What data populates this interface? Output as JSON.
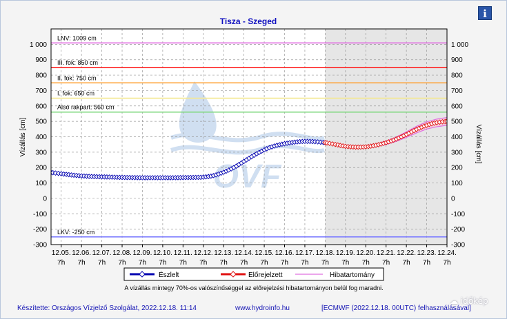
{
  "info_button": {
    "icon": "info-icon",
    "glyph": "i"
  },
  "brand": {
    "icon": "cloud-icon",
    "text": "időkép"
  },
  "chart_data": {
    "type": "line",
    "title": "Tisza - Szeged",
    "ylabel": "Vízállás [cm]",
    "ylabel_right": "Vízállás [cm]",
    "ylim": [
      -300,
      1100
    ],
    "yticks": [
      -300,
      -200,
      -100,
      0,
      100,
      200,
      300,
      400,
      500,
      600,
      700,
      800,
      900,
      1000
    ],
    "ytick_labels": [
      "-300",
      "-200",
      "-100",
      "0",
      "100",
      "200",
      "300",
      "400",
      "500",
      "600",
      "700",
      "800",
      "900",
      "1 000"
    ],
    "x_start": "12.04. 19h",
    "x_end": "12.24. 7h",
    "x_ticks": [
      {
        "day": "12.05.",
        "hour": "7h"
      },
      {
        "day": "12.06.",
        "hour": "7h"
      },
      {
        "day": "12.07.",
        "hour": "7h"
      },
      {
        "day": "12.08.",
        "hour": "7h"
      },
      {
        "day": "12.09.",
        "hour": "7h"
      },
      {
        "day": "12.10.",
        "hour": "7h"
      },
      {
        "day": "12.11.",
        "hour": "7h"
      },
      {
        "day": "12.12.",
        "hour": "7h"
      },
      {
        "day": "12.13.",
        "hour": "7h"
      },
      {
        "day": "12.14.",
        "hour": "7h"
      },
      {
        "day": "12.15.",
        "hour": "7h"
      },
      {
        "day": "12.16.",
        "hour": "7h"
      },
      {
        "day": "12.17.",
        "hour": "7h"
      },
      {
        "day": "12.18.",
        "hour": "7h"
      },
      {
        "day": "12.19.",
        "hour": "7h"
      },
      {
        "day": "12.20.",
        "hour": "7h"
      },
      {
        "day": "12.21.",
        "hour": "7h"
      },
      {
        "day": "12.22.",
        "hour": "7h"
      },
      {
        "day": "12.23.",
        "hour": "7h"
      },
      {
        "day": "12.24.",
        "hour": "7h"
      }
    ],
    "forecast_start": "12.18. 7h",
    "grid": true,
    "thresholds": [
      {
        "label": "LNV: 1009 cm",
        "value": 1009,
        "color": "#e070e0"
      },
      {
        "label": "III. fok: 850 cm",
        "value": 850,
        "color": "#ff2020"
      },
      {
        "label": "II. fok: 750 cm",
        "value": 750,
        "color": "#ffa030"
      },
      {
        "label": "I. fok: 650 cm",
        "value": 650,
        "color": "#f4e890"
      },
      {
        "label": "Alsó rakpart: 560 cm",
        "value": 560,
        "color": "#80d880"
      },
      {
        "label": "LKV: -250 cm",
        "value": -250,
        "color": "#8080ff"
      }
    ],
    "series": [
      {
        "name": "Észlelt",
        "color": "#0000b0",
        "x": [
          "12.04. 19h",
          "12.05. 7h",
          "12.05. 19h",
          "12.06. 7h",
          "12.06. 19h",
          "12.07. 7h",
          "12.07. 19h",
          "12.08. 7h",
          "12.08. 19h",
          "12.09. 7h",
          "12.09. 19h",
          "12.10. 7h",
          "12.10. 19h",
          "12.11. 7h",
          "12.11. 19h",
          "12.12. 7h",
          "12.12. 19h",
          "12.13. 7h",
          "12.13. 19h",
          "12.14. 7h",
          "12.14. 19h",
          "12.15. 7h",
          "12.15. 19h",
          "12.16. 7h",
          "12.16. 19h",
          "12.17. 7h",
          "12.17. 19h",
          "12.18. 7h"
        ],
        "values": [
          168,
          160,
          152,
          146,
          142,
          140,
          138,
          136,
          135,
          134,
          134,
          134,
          134,
          135,
          136,
          138,
          148,
          170,
          200,
          240,
          280,
          315,
          340,
          355,
          365,
          370,
          368,
          362
        ]
      },
      {
        "name": "Előrejelzett",
        "color": "#e01010",
        "x": [
          "12.18. 7h",
          "12.18. 19h",
          "12.19. 7h",
          "12.19. 19h",
          "12.20. 7h",
          "12.20. 19h",
          "12.21. 7h",
          "12.21. 19h",
          "12.22. 7h",
          "12.22. 19h",
          "12.23. 7h",
          "12.23. 19h",
          "12.24. 7h"
        ],
        "values": [
          362,
          350,
          338,
          333,
          335,
          345,
          362,
          385,
          415,
          448,
          475,
          492,
          500
        ]
      },
      {
        "name": "Hibatartomány",
        "color": "#e070e0",
        "x": [
          "12.18. 7h",
          "12.18. 19h",
          "12.19. 7h",
          "12.19. 19h",
          "12.20. 7h",
          "12.20. 19h",
          "12.21. 7h",
          "12.21. 19h",
          "12.22. 7h",
          "12.22. 19h",
          "12.23. 7h",
          "12.23. 19h",
          "12.24. 7h"
        ],
        "upper": [
          364,
          356,
          345,
          340,
          342,
          352,
          372,
          398,
          432,
          468,
          497,
          515,
          525
        ],
        "lower": [
          360,
          346,
          332,
          327,
          328,
          336,
          350,
          370,
          396,
          425,
          450,
          465,
          475
        ]
      }
    ],
    "note": "A vízállás mintegy 70%-os valószínűséggel az előrejelzési hibatartományon belül fog maradni.",
    "footer": {
      "left": "Készítette: Országos Vízjelző Szolgálat, 2022.12.18. 11:14",
      "center": "www.hydroinfo.hu",
      "right": "[ECMWF (2022.12.18. 00UTC) felhasználásával]"
    },
    "watermark": "OVF"
  }
}
